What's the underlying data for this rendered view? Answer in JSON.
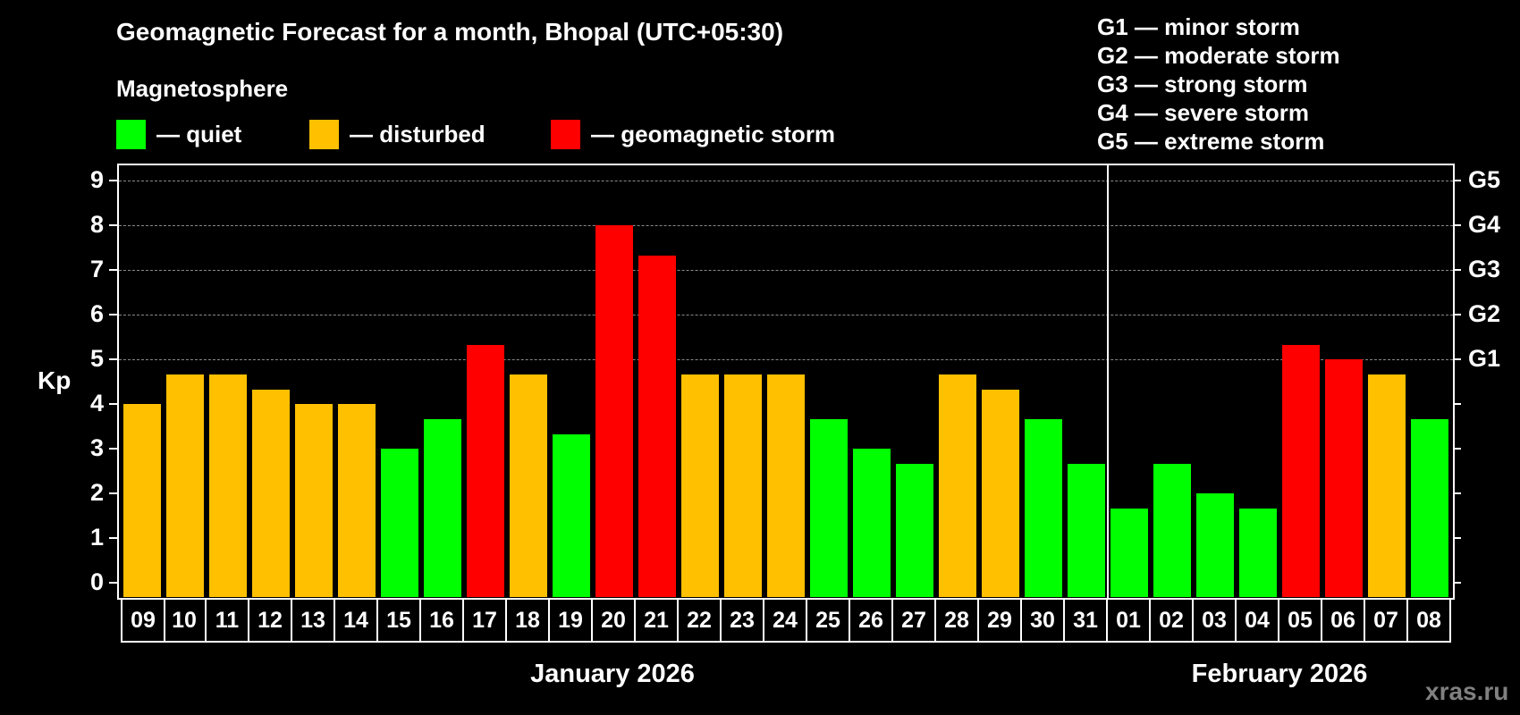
{
  "header": {
    "title": "Geomagnetic Forecast for a month, Bhopal (UTC+05:30)",
    "subtitle": "Magnetosphere"
  },
  "legend": {
    "items": [
      {
        "label": "— quiet",
        "color": "#00FF00"
      },
      {
        "label": "— disturbed",
        "color": "#FFC000"
      },
      {
        "label": "— geomagnetic storm",
        "color": "#FF0000"
      }
    ]
  },
  "storm_scale": [
    "G1 — minor storm",
    "G2 — moderate storm",
    "G3 — strong storm",
    "G4 — severe storm",
    "G5 — extreme storm"
  ],
  "axis": {
    "ylabel": "Kp",
    "yticks": [
      "0",
      "1",
      "2",
      "3",
      "4",
      "5",
      "6",
      "7",
      "8",
      "9"
    ],
    "right_ticks": [
      {
        "kp": 5,
        "label": "G1"
      },
      {
        "kp": 6,
        "label": "G2"
      },
      {
        "kp": 7,
        "label": "G3"
      },
      {
        "kp": 8,
        "label": "G4"
      },
      {
        "kp": 9,
        "label": "G5"
      }
    ]
  },
  "months": [
    {
      "label": "January 2026"
    },
    {
      "label": "February 2026"
    }
  ],
  "watermark": "xras.ru",
  "colors": {
    "quiet": "#00FF00",
    "disturbed": "#FFC000",
    "storm": "#FF0000",
    "grid": "#8a8a8a"
  },
  "chart_data": {
    "type": "bar",
    "title": "Geomagnetic Forecast for a month, Bhopal (UTC+05:30)",
    "xlabel": "January 2026 / February 2026",
    "ylabel": "Kp",
    "ylim": [
      0,
      9
    ],
    "grid": true,
    "categories": [
      "09",
      "10",
      "11",
      "12",
      "13",
      "14",
      "15",
      "16",
      "17",
      "18",
      "19",
      "20",
      "21",
      "22",
      "23",
      "24",
      "25",
      "26",
      "27",
      "28",
      "29",
      "30",
      "31",
      "01",
      "02",
      "03",
      "04",
      "05",
      "06",
      "07",
      "08"
    ],
    "values": [
      4.0,
      4.67,
      4.67,
      4.33,
      4.0,
      4.0,
      3.0,
      3.67,
      5.33,
      4.67,
      3.33,
      8.0,
      7.33,
      4.67,
      4.67,
      4.67,
      3.67,
      3.0,
      2.67,
      4.67,
      4.33,
      3.67,
      2.67,
      1.67,
      2.67,
      2.0,
      1.67,
      5.33,
      5.0,
      4.67,
      3.67
    ],
    "status": [
      "disturbed",
      "disturbed",
      "disturbed",
      "disturbed",
      "disturbed",
      "disturbed",
      "quiet",
      "quiet",
      "storm",
      "disturbed",
      "quiet",
      "storm",
      "storm",
      "disturbed",
      "disturbed",
      "disturbed",
      "quiet",
      "quiet",
      "quiet",
      "disturbed",
      "disturbed",
      "quiet",
      "quiet",
      "quiet",
      "quiet",
      "quiet",
      "quiet",
      "storm",
      "storm",
      "disturbed",
      "quiet"
    ],
    "legend": [
      "quiet",
      "disturbed",
      "geomagnetic storm"
    ],
    "secondary_axis": {
      "G1": 5,
      "G2": 6,
      "G3": 7,
      "G4": 8,
      "G5": 9
    }
  }
}
